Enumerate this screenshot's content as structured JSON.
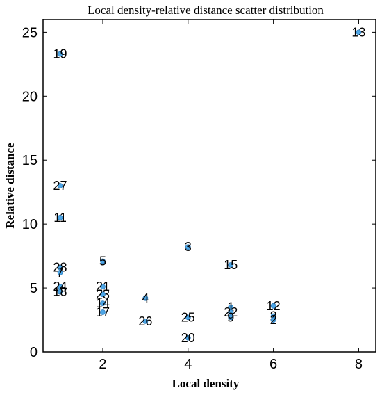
{
  "chart_data": {
    "type": "scatter",
    "title": "Local density-relative distance scatter distribution",
    "xlabel": "Local density",
    "ylabel": "Relative distance",
    "xlim": [
      0.6,
      8.4
    ],
    "ylim": [
      0,
      26
    ],
    "xticks": [
      2,
      4,
      6,
      8
    ],
    "yticks": [
      0,
      5,
      10,
      15,
      20,
      25
    ],
    "grid": false,
    "marker_color": "#4da6e6",
    "points": [
      {
        "label": "13",
        "x": 8,
        "y": 25.0
      },
      {
        "label": "19",
        "x": 1,
        "y": 23.3
      },
      {
        "label": "27",
        "x": 1,
        "y": 13.0
      },
      {
        "label": "11",
        "x": 1,
        "y": 10.5
      },
      {
        "label": "28",
        "x": 1,
        "y": 6.6
      },
      {
        "label": "7",
        "x": 1,
        "y": 6.2
      },
      {
        "label": "24",
        "x": 1,
        "y": 5.1
      },
      {
        "label": "18",
        "x": 1,
        "y": 4.7
      },
      {
        "label": "5",
        "x": 2,
        "y": 7.1
      },
      {
        "label": "21",
        "x": 2,
        "y": 5.1
      },
      {
        "label": "23",
        "x": 2,
        "y": 4.5
      },
      {
        "label": "14",
        "x": 2,
        "y": 3.8
      },
      {
        "label": "17",
        "x": 2,
        "y": 3.1
      },
      {
        "label": "4",
        "x": 3,
        "y": 4.2
      },
      {
        "label": "26",
        "x": 3,
        "y": 2.4
      },
      {
        "label": "3",
        "x": 4,
        "y": 8.2
      },
      {
        "label": "25",
        "x": 4,
        "y": 2.7
      },
      {
        "label": "20",
        "x": 4,
        "y": 1.1
      },
      {
        "label": "15",
        "x": 5,
        "y": 6.8
      },
      {
        "label": "1",
        "x": 5,
        "y": 3.5
      },
      {
        "label": "22",
        "x": 5,
        "y": 3.1
      },
      {
        "label": "9",
        "x": 5,
        "y": 2.7
      },
      {
        "label": "12",
        "x": 6,
        "y": 3.6
      },
      {
        "label": "2",
        "x": 6,
        "y": 2.8
      },
      {
        "label": "2",
        "x": 6,
        "y": 2.5
      }
    ]
  }
}
